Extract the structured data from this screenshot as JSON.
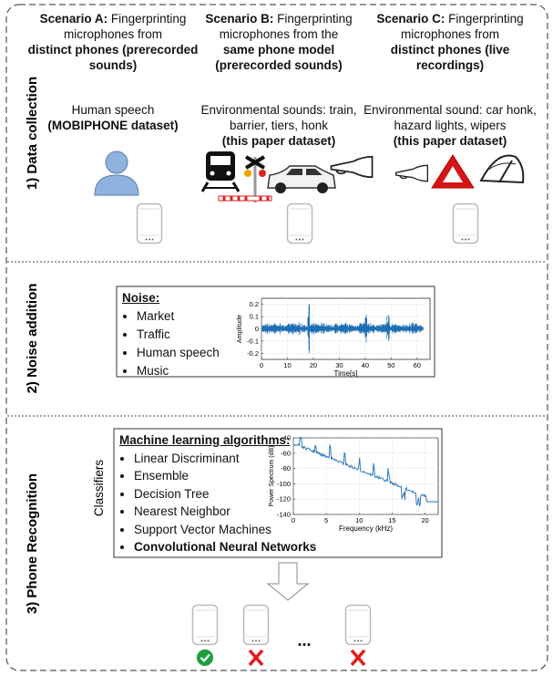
{
  "sections": [
    {
      "label": "1) Data collection",
      "scenarios": [
        {
          "name": "Scenario A:",
          "description": "Fingerprinting microphones from",
          "emphasis": "distinct phones (prerecorded sounds)",
          "sounds": "Human speech",
          "dataset": "(MOBIPHONE dataset)"
        },
        {
          "name": "Scenario B:",
          "description": "Fingerprinting microphones from the",
          "emphasis": "same phone model (prerecorded sounds)",
          "sounds": "Environmental sounds: train, barrier, tiers, honk",
          "dataset": "(this paper dataset)"
        },
        {
          "name": "Scenario C:",
          "description": "Fingerprinting microphones from",
          "emphasis": "distinct phones (live recordings)",
          "sounds": "Environmental sound: car honk, hazard lights, wipers",
          "dataset": "(this paper dataset)"
        }
      ]
    },
    {
      "label": "2) Noise addition",
      "panel": {
        "title": "Noise:",
        "items": [
          "Market",
          "Traffic",
          "Human speech",
          "Music"
        ],
        "plot": {
          "xlabel": "Time[s]",
          "ylabel": "Amplitude",
          "xlim": [
            0,
            65
          ],
          "ylim": [
            -0.25,
            0.25
          ],
          "xticks": [
            0,
            10,
            20,
            30,
            40,
            50,
            60
          ],
          "yticks": [
            -0.2,
            -0.1,
            0,
            0.1,
            0.2
          ],
          "grid": true
        }
      }
    },
    {
      "label": "3) Phone Recognition",
      "side_label": "Classifiers",
      "panel": {
        "title": "Machine learning algorithms:",
        "items": [
          "Linear Discriminant",
          "Ensemble",
          "Decision Tree",
          "Nearest Neighbor",
          "Support Vector Machines"
        ],
        "bold_item": "Convolutional Neural Networks",
        "plot": {
          "xlabel": "Frequency (kHz)",
          "ylabel": "Power Spectrum (dB)",
          "xlim": [
            0,
            22
          ],
          "ylim": [
            -140,
            -40
          ],
          "xticks": [
            0,
            5,
            10,
            15,
            20
          ],
          "yticks": [
            -140,
            -120,
            -100,
            -80,
            -60,
            -40
          ],
          "grid": true
        }
      },
      "ellipsis": "..."
    }
  ]
}
